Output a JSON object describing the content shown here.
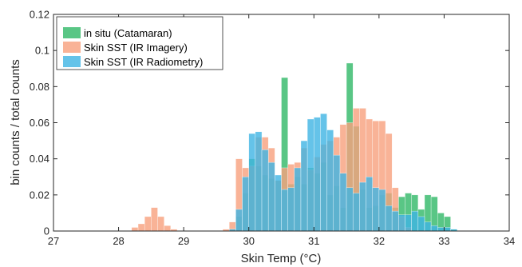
{
  "chart_data": {
    "type": "bar",
    "title": "",
    "xlabel": "Skin Temp (°C)",
    "ylabel": "bin counts / total counts",
    "xlim": [
      27,
      34
    ],
    "ylim": [
      0,
      0.12
    ],
    "xticks": [
      "27",
      "28",
      "29",
      "30",
      "31",
      "32",
      "33",
      "34"
    ],
    "yticks": [
      "0",
      "0.02",
      "0.04",
      "0.06",
      "0.08",
      "0.1",
      "0.12"
    ],
    "bin_width": 0.1,
    "bin_starts": [
      27.0,
      27.1,
      27.2,
      27.3,
      27.4,
      27.5,
      27.6,
      27.7,
      27.8,
      27.9,
      28.0,
      28.1,
      28.2,
      28.3,
      28.4,
      28.5,
      28.6,
      28.7,
      28.8,
      28.9,
      29.0,
      29.1,
      29.2,
      29.3,
      29.4,
      29.5,
      29.6,
      29.7,
      29.8,
      29.9,
      30.0,
      30.1,
      30.2,
      30.3,
      30.4,
      30.5,
      30.6,
      30.7,
      30.8,
      30.9,
      31.0,
      31.1,
      31.2,
      31.3,
      31.4,
      31.5,
      31.6,
      31.7,
      31.8,
      31.9,
      32.0,
      32.1,
      32.2,
      32.3,
      32.4,
      32.5,
      32.6,
      32.7,
      32.8,
      32.9,
      33.0,
      33.1,
      33.2,
      33.3,
      33.4,
      33.5,
      33.6,
      33.7,
      33.8,
      33.9
    ],
    "series": [
      {
        "name": "in situ (Catamaran)",
        "color": "#2fb866",
        "values": [
          0,
          0,
          0,
          0,
          0,
          0,
          0,
          0,
          0,
          0,
          0,
          0,
          0,
          0,
          0,
          0,
          0,
          0,
          0,
          0,
          0,
          0,
          0,
          0,
          0,
          0,
          0,
          0.001,
          0.008,
          0.021,
          0.04,
          0.036,
          0.031,
          0.029,
          0.028,
          0.085,
          0.026,
          0.03,
          0.026,
          0.035,
          0.032,
          0.038,
          0.02,
          0.025,
          0.013,
          0.093,
          0.058,
          0.023,
          0.013,
          0.014,
          0.02,
          0.021,
          0.013,
          0.019,
          0.021,
          0.02,
          0.012,
          0.02,
          0.019,
          0.01,
          0.008,
          0.001,
          0,
          0,
          0,
          0,
          0,
          0,
          0,
          0
        ]
      },
      {
        "name": "Skin SST (IR Imagery)",
        "color": "#f7a07d",
        "values": [
          0,
          0,
          0,
          0,
          0,
          0,
          0,
          0,
          0,
          0,
          0,
          0,
          0.002,
          0.004,
          0.008,
          0.013,
          0.008,
          0.003,
          0.001,
          0,
          0,
          0,
          0,
          0,
          0,
          0,
          0.001,
          0.005,
          0.04,
          0.035,
          0.036,
          0.052,
          0.052,
          0.046,
          0.028,
          0.035,
          0.037,
          0.038,
          0.046,
          0.034,
          0.041,
          0.048,
          0.05,
          0.052,
          0.059,
          0.06,
          0.068,
          0.068,
          0.062,
          0.061,
          0.061,
          0.054,
          0.024,
          0.008,
          0.002,
          0,
          0,
          0,
          0,
          0,
          0,
          0,
          0,
          0,
          0,
          0,
          0,
          0,
          0,
          0
        ]
      },
      {
        "name": "Skin SST (IR Radiometry)",
        "color": "#3fb4e4",
        "values": [
          0,
          0,
          0,
          0,
          0,
          0,
          0,
          0,
          0,
          0,
          0,
          0,
          0,
          0,
          0,
          0,
          0,
          0,
          0,
          0,
          0,
          0,
          0,
          0,
          0,
          0,
          0,
          0.001,
          0.012,
          0.03,
          0.054,
          0.055,
          0.045,
          0.038,
          0.031,
          0.023,
          0.024,
          0.035,
          0.05,
          0.062,
          0.063,
          0.065,
          0.056,
          0.042,
          0.032,
          0.024,
          0.021,
          0.027,
          0.03,
          0.024,
          0.023,
          0.014,
          0.011,
          0.009,
          0.009,
          0.011,
          0.008,
          0.005,
          0.003,
          0.002,
          0.002,
          0.001,
          0,
          0,
          0,
          0,
          0,
          0,
          0,
          0
        ]
      }
    ],
    "legend_position": "top-left"
  }
}
